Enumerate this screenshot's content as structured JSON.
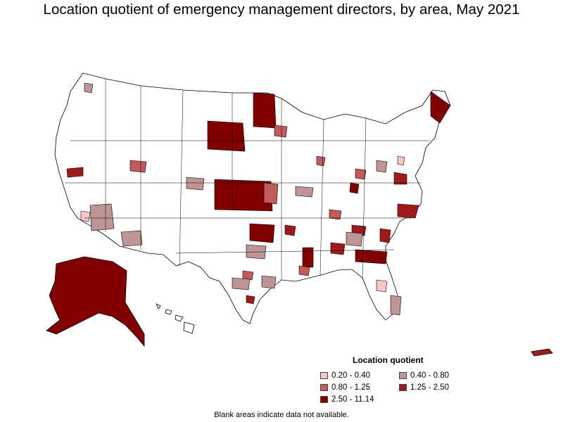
{
  "title": "Location quotient of emergency management directors, by area, May 2021",
  "legend": {
    "title": "Location quotient",
    "items": [
      {
        "label": "0.20 - 0.40",
        "color": "#f7c6c6"
      },
      {
        "label": "0.40 - 0.80",
        "color": "#bf9494"
      },
      {
        "label": "0.80 - 1.25",
        "color": "#c15a5a"
      },
      {
        "label": "1.25 - 2.50",
        "color": "#9e1b1b"
      },
      {
        "label": "2.50 - 11.14",
        "color": "#800000"
      }
    ]
  },
  "note": "Blank areas indicate data not available.",
  "colors": {
    "no_data": "#ffffff",
    "border": "#000000"
  }
}
